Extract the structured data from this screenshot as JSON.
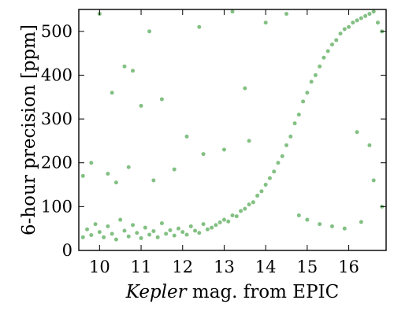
{
  "chart_data": {
    "type": "scatter",
    "title": "",
    "xlabel_italic": "Kepler",
    "xlabel_rest": " mag. from EPIC",
    "ylabel": "6-hour precision [ppm]",
    "xlim": [
      9.5,
      16.9
    ],
    "ylim": [
      0,
      550
    ],
    "xticks": [
      10,
      11,
      12,
      13,
      14,
      15,
      16
    ],
    "yticks": [
      0,
      100,
      200,
      300,
      400,
      500
    ],
    "grid": false,
    "legend": "none",
    "marker_color": "#1e8c1e",
    "marker_opacity": 0.55,
    "series": [
      {
        "points": [
          [
            9.6,
            30
          ],
          [
            9.7,
            48
          ],
          [
            9.8,
            35
          ],
          [
            9.9,
            60
          ],
          [
            10.0,
            42
          ],
          [
            10.1,
            30
          ],
          [
            10.2,
            55
          ],
          [
            10.3,
            38
          ],
          [
            10.4,
            25
          ],
          [
            10.5,
            70
          ],
          [
            10.6,
            45
          ],
          [
            10.7,
            32
          ],
          [
            10.8,
            58
          ],
          [
            10.9,
            40
          ],
          [
            11.0,
            28
          ],
          [
            11.1,
            52
          ],
          [
            11.2,
            36
          ],
          [
            11.3,
            44
          ],
          [
            11.4,
            30
          ],
          [
            11.5,
            62
          ],
          [
            11.6,
            38
          ],
          [
            11.7,
            46
          ],
          [
            11.8,
            34
          ],
          [
            11.9,
            50
          ],
          [
            12.0,
            42
          ],
          [
            12.1,
            36
          ],
          [
            12.2,
            55
          ],
          [
            12.3,
            45
          ],
          [
            12.4,
            40
          ],
          [
            12.5,
            60
          ],
          [
            12.6,
            48
          ],
          [
            12.7,
            52
          ],
          [
            12.8,
            58
          ],
          [
            12.9,
            64
          ],
          [
            13.0,
            70
          ],
          [
            13.1,
            66
          ],
          [
            13.2,
            80
          ],
          [
            13.3,
            78
          ],
          [
            13.4,
            90
          ],
          [
            13.5,
            95
          ],
          [
            13.6,
            105
          ],
          [
            13.7,
            110
          ],
          [
            13.8,
            125
          ],
          [
            13.9,
            135
          ],
          [
            14.0,
            150
          ],
          [
            14.1,
            165
          ],
          [
            14.2,
            180
          ],
          [
            14.3,
            200
          ],
          [
            14.4,
            215
          ],
          [
            14.5,
            240
          ],
          [
            14.6,
            260
          ],
          [
            14.7,
            290
          ],
          [
            14.8,
            310
          ],
          [
            14.9,
            340
          ],
          [
            15.0,
            360
          ],
          [
            15.1,
            385
          ],
          [
            15.2,
            400
          ],
          [
            15.3,
            420
          ],
          [
            15.4,
            440
          ],
          [
            15.5,
            455
          ],
          [
            15.6,
            470
          ],
          [
            15.7,
            480
          ],
          [
            15.8,
            495
          ],
          [
            15.9,
            505
          ],
          [
            16.0,
            510
          ],
          [
            16.1,
            520
          ],
          [
            16.2,
            525
          ],
          [
            16.3,
            530
          ],
          [
            16.4,
            535
          ],
          [
            16.5,
            540
          ],
          [
            16.6,
            545
          ],
          [
            16.7,
            520
          ],
          [
            16.8,
            500
          ],
          [
            10.0,
            540
          ],
          [
            10.3,
            360
          ],
          [
            10.6,
            420
          ],
          [
            10.8,
            410
          ],
          [
            11.2,
            500
          ],
          [
            11.0,
            330
          ],
          [
            11.5,
            345
          ],
          [
            12.4,
            510
          ],
          [
            12.1,
            260
          ],
          [
            13.2,
            545
          ],
          [
            13.5,
            370
          ],
          [
            14.0,
            520
          ],
          [
            14.5,
            540
          ],
          [
            9.6,
            170
          ],
          [
            9.8,
            200
          ],
          [
            10.2,
            175
          ],
          [
            10.4,
            155
          ],
          [
            10.7,
            190
          ],
          [
            11.3,
            160
          ],
          [
            11.8,
            185
          ],
          [
            12.5,
            220
          ],
          [
            13.0,
            230
          ],
          [
            13.6,
            250
          ],
          [
            14.8,
            80
          ],
          [
            15.0,
            70
          ],
          [
            15.3,
            60
          ],
          [
            15.6,
            55
          ],
          [
            15.9,
            50
          ],
          [
            16.3,
            65
          ],
          [
            16.8,
            100
          ],
          [
            16.5,
            240
          ],
          [
            16.6,
            160
          ],
          [
            16.2,
            270
          ]
        ]
      }
    ]
  }
}
